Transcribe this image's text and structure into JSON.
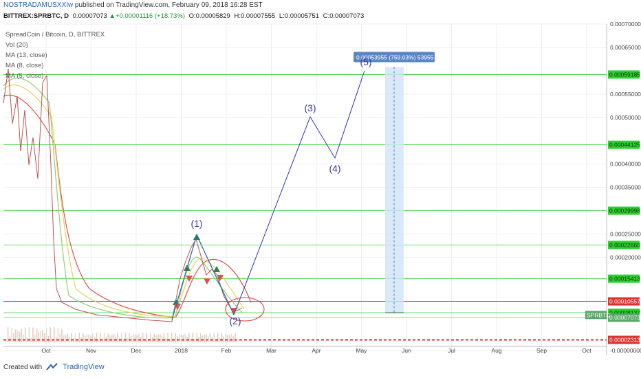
{
  "header": {
    "user": "NOSTRADAMUSXXIw",
    "published": "published on TradingView.com, February 09, 2018 16:28 EST",
    "symbol": "BITTREX:SPRBTC, D",
    "last": "0.00007073",
    "change": "+0.00001116 (+18.73%)",
    "open": "0.00005829",
    "high": "0.00007555",
    "low": "0.00005751",
    "close": "0.00007073"
  },
  "legend": {
    "title": "SpreadCoin / Bitcoin, D, BITTREX",
    "vol": "Vol (20)",
    "ma13": "MA (13, close)",
    "ma8": "MA (8, close)",
    "ma5": "MA (5, close)"
  },
  "footer": {
    "created": "Created with",
    "brand": "TradingView"
  },
  "colors": {
    "ma_red": "#e05050",
    "ma_yellow": "#e8d060",
    "ma_green": "#90d070",
    "hline_green": "#30d030",
    "hline_red": "#e03030",
    "wave_line": "#4040c0",
    "projection": "#cfe3f7"
  },
  "chart_data": {
    "type": "line",
    "symbol_tag": "SPRBTC",
    "x_ticks": [
      "Oct",
      "Nov",
      "Dec",
      "2018",
      "Feb",
      "Mar",
      "Apr",
      "May",
      "Jun",
      "Jul",
      "Aug",
      "Sep",
      "Oct"
    ],
    "y_ticks": [
      "0.00070000",
      "0.00065000",
      "0.00055000",
      "0.00050000",
      "0.00040000",
      "0.00035000",
      "0.00025000",
      "0.00020000",
      "-0.00000000"
    ],
    "ylim": [
      -1e-05,
      0.0007
    ],
    "horizontal_levels": [
      {
        "value": 0.00059185,
        "label": "0.00059185",
        "color": "green"
      },
      {
        "value": 0.00044125,
        "label": "0.00044125",
        "color": "green"
      },
      {
        "value": 0.00029998,
        "label": "0.00029998",
        "color": "green"
      },
      {
        "value": 0.0002266,
        "label": "0.00022660",
        "color": "green"
      },
      {
        "value": 0.00015413,
        "label": "0.00015413",
        "color": "green"
      },
      {
        "value": 0.00010557,
        "label": "0.00010557",
        "color": "red"
      },
      {
        "value": 8.137e-05,
        "label": "0.00008137",
        "color": "green"
      },
      {
        "value": 7.073e-05,
        "label": "0.00007073",
        "color": "price"
      },
      {
        "value": 2.313e-05,
        "label": "0.00002313",
        "color": "red-dashed"
      }
    ],
    "wave_labels": [
      "(1)",
      "(2)",
      "(3)",
      "(4)",
      "(5)"
    ],
    "measure_label": "0.00053955 (759.03%) 53955"
  }
}
